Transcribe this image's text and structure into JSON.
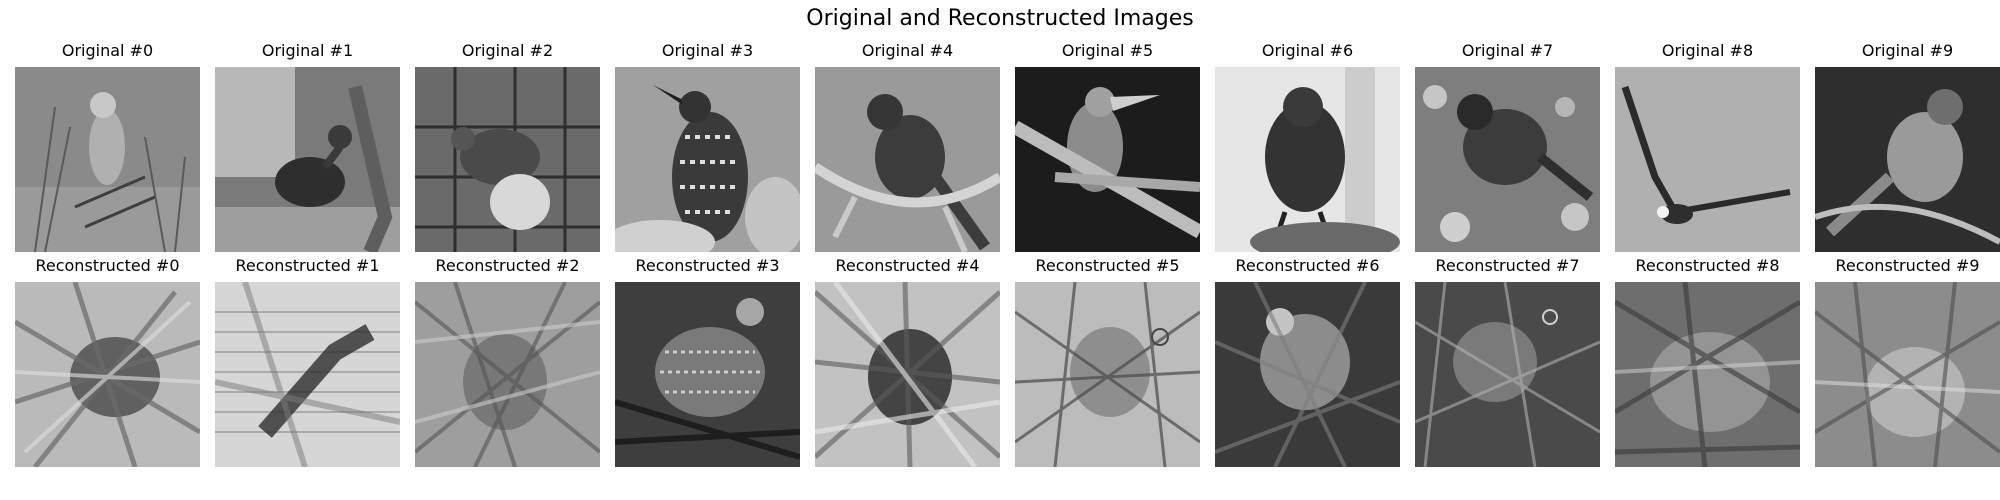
{
  "figure": {
    "title": "Original and Reconstructed Images"
  },
  "original_images": [
    {
      "title": "Original #0"
    },
    {
      "title": "Original #1"
    },
    {
      "title": "Original #2"
    },
    {
      "title": "Original #3"
    },
    {
      "title": "Original #4"
    },
    {
      "title": "Original #5"
    },
    {
      "title": "Original #6"
    },
    {
      "title": "Original #7"
    },
    {
      "title": "Original #8"
    },
    {
      "title": "Original #9"
    }
  ],
  "reconstructed_images": [
    {
      "title": "Reconstructed #0"
    },
    {
      "title": "Reconstructed #1"
    },
    {
      "title": "Reconstructed #2"
    },
    {
      "title": "Reconstructed #3"
    },
    {
      "title": "Reconstructed #4"
    },
    {
      "title": "Reconstructed #5"
    },
    {
      "title": "Reconstructed #6"
    },
    {
      "title": "Reconstructed #7"
    },
    {
      "title": "Reconstructed #8"
    },
    {
      "title": "Reconstructed #9"
    }
  ]
}
